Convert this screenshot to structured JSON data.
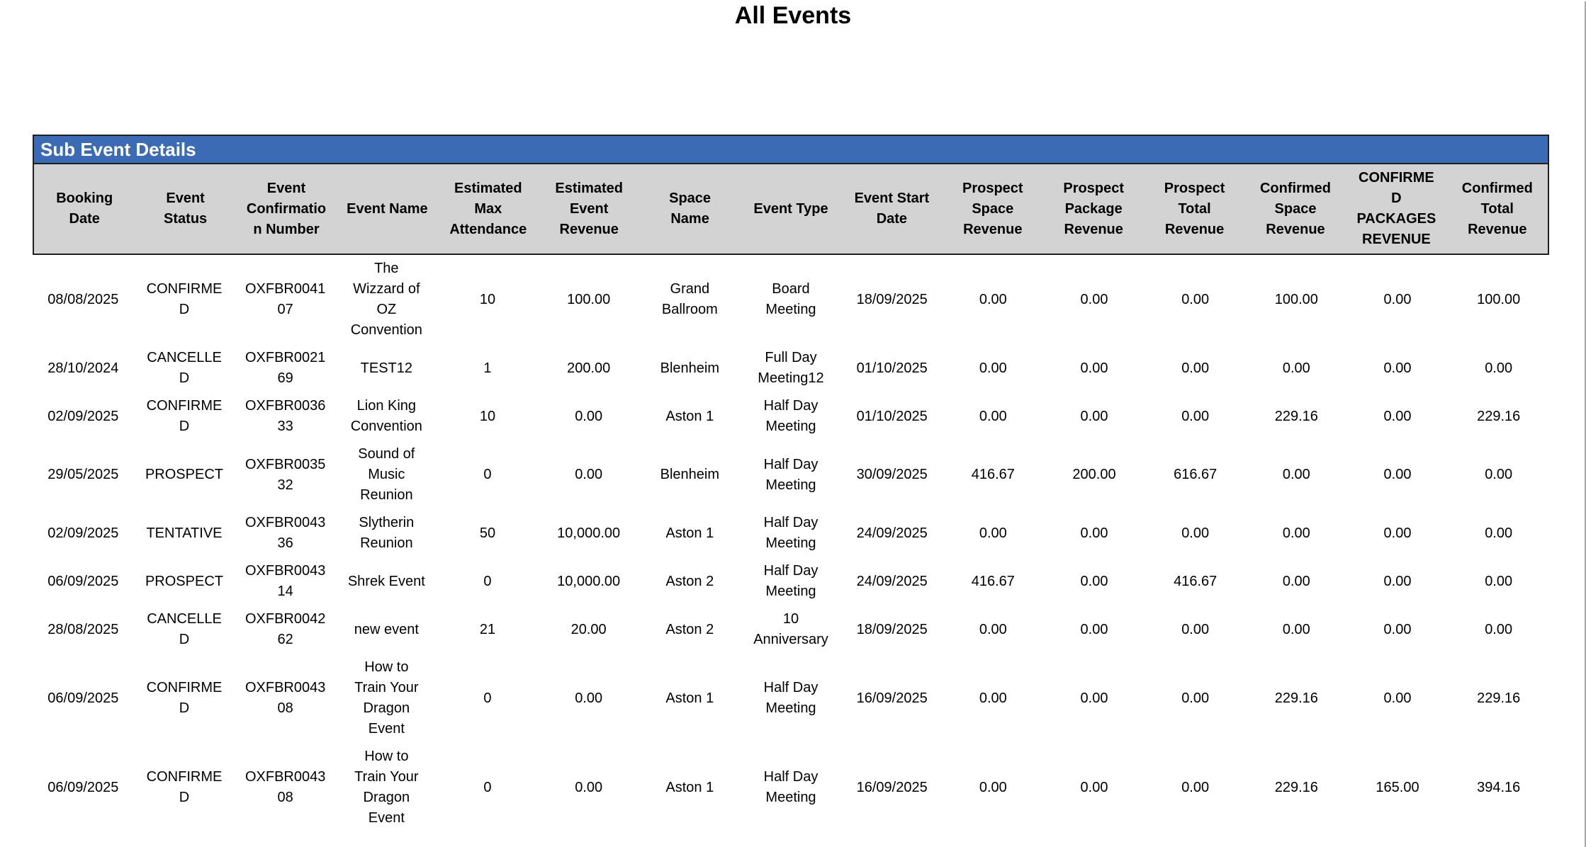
{
  "page": {
    "title": "All Events"
  },
  "report": {
    "section_title": "Sub Event Details",
    "table": {
      "columns": [
        "Booking Date",
        "Event Status",
        "Event Confirmation Number",
        "Event Name",
        "Estimated Max Attendance",
        "Estimated Event Revenue",
        "Space Name",
        "Event Type",
        "Event Start Date",
        "Prospect Space Revenue",
        "Prospect Package Revenue",
        "Prospect Total Revenue",
        "Confirmed Space Revenue",
        "CONFIRMED PACKAGES REVENUE",
        "Confirmed Total Revenue"
      ],
      "rows": [
        [
          "08/08/2025",
          "CONFIRMED",
          "OXFBR004107",
          "The Wizzard of OZ Convention",
          "10",
          "100.00",
          "Grand Ballroom",
          "Board Meeting",
          "18/09/2025",
          "0.00",
          "0.00",
          "0.00",
          "100.00",
          "0.00",
          "100.00"
        ],
        [
          "28/10/2024",
          "CANCELLED",
          "OXFBR002169",
          "TEST12",
          "1",
          "200.00",
          "Blenheim",
          "Full Day Meeting12",
          "01/10/2025",
          "0.00",
          "0.00",
          "0.00",
          "0.00",
          "0.00",
          "0.00"
        ],
        [
          "02/09/2025",
          "CONFIRMED",
          "OXFBR003633",
          "Lion King Convention",
          "10",
          "0.00",
          "Aston 1",
          "Half Day Meeting",
          "01/10/2025",
          "0.00",
          "0.00",
          "0.00",
          "229.16",
          "0.00",
          "229.16"
        ],
        [
          "29/05/2025",
          "PROSPECT",
          "OXFBR003532",
          "Sound of Music Reunion",
          "0",
          "0.00",
          "Blenheim",
          "Half Day Meeting",
          "30/09/2025",
          "416.67",
          "200.00",
          "616.67",
          "0.00",
          "0.00",
          "0.00"
        ],
        [
          "02/09/2025",
          "TENTATIVE",
          "OXFBR004336",
          "Slytherin Reunion",
          "50",
          "10,000.00",
          "Aston 1",
          "Half Day Meeting",
          "24/09/2025",
          "0.00",
          "0.00",
          "0.00",
          "0.00",
          "0.00",
          "0.00"
        ],
        [
          "06/09/2025",
          "PROSPECT",
          "OXFBR004314",
          "Shrek Event",
          "0",
          "10,000.00",
          "Aston 2",
          "Half Day Meeting",
          "24/09/2025",
          "416.67",
          "0.00",
          "416.67",
          "0.00",
          "0.00",
          "0.00"
        ],
        [
          "28/08/2025",
          "CANCELLED",
          "OXFBR004262",
          "new event",
          "21",
          "20.00",
          "Aston 2",
          "10 Anniversary",
          "18/09/2025",
          "0.00",
          "0.00",
          "0.00",
          "0.00",
          "0.00",
          "0.00"
        ],
        [
          "06/09/2025",
          "CONFIRMED",
          "OXFBR004308",
          "How to Train Your Dragon Event",
          "0",
          "0.00",
          "Aston 1",
          "Half Day Meeting",
          "16/09/2025",
          "0.00",
          "0.00",
          "0.00",
          "229.16",
          "0.00",
          "229.16"
        ],
        [
          "06/09/2025",
          "CONFIRMED",
          "OXFBR004308",
          "How to Train Your Dragon Event",
          "0",
          "0.00",
          "Aston 1",
          "Half Day Meeting",
          "16/09/2025",
          "0.00",
          "0.00",
          "0.00",
          "229.16",
          "165.00",
          "394.16"
        ]
      ]
    }
  },
  "colors": {
    "section_header_bg": "#3a6bb4",
    "section_header_text": "#ffffff",
    "table_header_bg": "#d3d3d3",
    "border": "#202020"
  }
}
